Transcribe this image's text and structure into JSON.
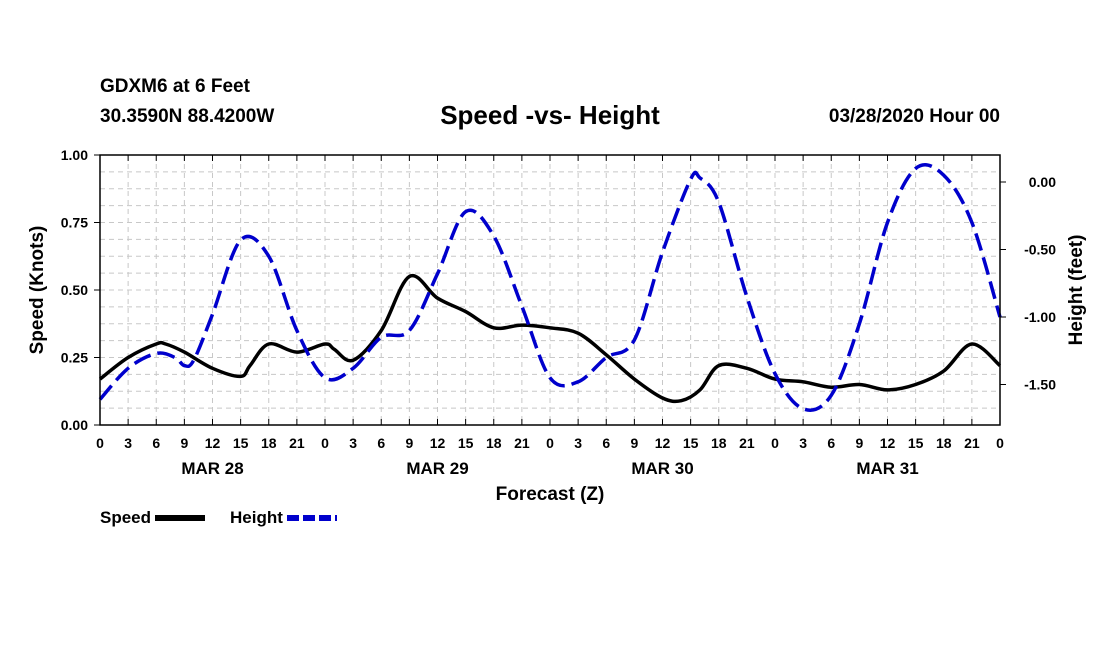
{
  "header": {
    "station": "GDXM6 at 6 Feet",
    "coords": "30.3590N 88.4200W",
    "title": "Speed -vs- Height",
    "datetime": "03/28/2020 Hour 00"
  },
  "legend": {
    "speed_label": "Speed",
    "height_label": "Height"
  },
  "colors": {
    "speed": "#000000",
    "height": "#0000cc",
    "grid": "#c8c8c8"
  },
  "chart_data": {
    "type": "line",
    "title": "Speed -vs- Height",
    "xlabel": "Forecast (Z)",
    "ylabel": "Speed (Knots)",
    "y2label": "Height (feet)",
    "xlim": [
      0,
      96
    ],
    "ylim": [
      0,
      1
    ],
    "y2lim": [
      -1.8,
      0.2
    ],
    "x_tick_labels": [
      "0",
      "3",
      "6",
      "9",
      "12",
      "15",
      "18",
      "21",
      "0",
      "3",
      "6",
      "9",
      "12",
      "15",
      "18",
      "21",
      "0",
      "3",
      "6",
      "9",
      "12",
      "15",
      "18",
      "21",
      "0",
      "3",
      "6",
      "9",
      "12",
      "15",
      "18",
      "21",
      "0"
    ],
    "date_labels": [
      {
        "hour": 12,
        "label": "MAR 28"
      },
      {
        "hour": 36,
        "label": "MAR 29"
      },
      {
        "hour": 60,
        "label": "MAR 30"
      },
      {
        "hour": 84,
        "label": "MAR 31"
      }
    ],
    "y_ticks": [
      0,
      0.25,
      0.5,
      0.75,
      1.0
    ],
    "y_tick_labels": [
      "0.00",
      "0.25",
      "0.50",
      "0.75",
      "1.00"
    ],
    "y2_ticks": [
      -1.5,
      -1.0,
      -0.5,
      0.0
    ],
    "y2_tick_labels": [
      "-1.50",
      "-1.00",
      "-0.50",
      "0.00"
    ],
    "grid": true,
    "legend_position": "bottom-left",
    "series": [
      {
        "name": "Speed",
        "axis": "left",
        "style": "solid",
        "x": [
          0,
          3,
          6,
          7,
          9,
          12,
          15,
          16,
          18,
          21,
          24,
          25,
          27,
          30,
          33,
          36,
          39,
          42,
          45,
          48,
          51,
          54,
          57,
          60,
          62,
          64,
          66,
          69,
          72,
          75,
          78,
          81,
          84,
          87,
          90,
          93,
          96
        ],
        "y": [
          0.17,
          0.25,
          0.3,
          0.3,
          0.27,
          0.21,
          0.18,
          0.22,
          0.3,
          0.27,
          0.3,
          0.28,
          0.24,
          0.35,
          0.55,
          0.47,
          0.42,
          0.36,
          0.37,
          0.36,
          0.34,
          0.26,
          0.17,
          0.1,
          0.09,
          0.13,
          0.22,
          0.21,
          0.17,
          0.16,
          0.14,
          0.15,
          0.13,
          0.15,
          0.2,
          0.3,
          0.22
        ]
      },
      {
        "name": "Height",
        "axis": "right",
        "style": "dashed",
        "x": [
          0,
          3,
          6,
          8,
          9,
          10,
          12,
          15,
          18,
          21,
          24,
          27,
          30,
          33,
          36,
          39,
          42,
          45,
          48,
          51,
          54,
          57,
          60,
          63,
          64,
          66,
          69,
          72,
          75,
          78,
          81,
          84,
          87,
          90,
          93,
          96
        ],
        "y": [
          -1.61,
          -1.38,
          -1.27,
          -1.3,
          -1.36,
          -1.32,
          -0.98,
          -0.43,
          -0.55,
          -1.1,
          -1.45,
          -1.38,
          -1.15,
          -1.1,
          -0.68,
          -0.22,
          -0.4,
          -0.92,
          -1.45,
          -1.48,
          -1.3,
          -1.17,
          -0.52,
          0.02,
          0.03,
          -0.15,
          -0.85,
          -1.42,
          -1.68,
          -1.58,
          -1.05,
          -0.3,
          0.1,
          0.05,
          -0.3,
          -1.0
        ]
      }
    ]
  }
}
